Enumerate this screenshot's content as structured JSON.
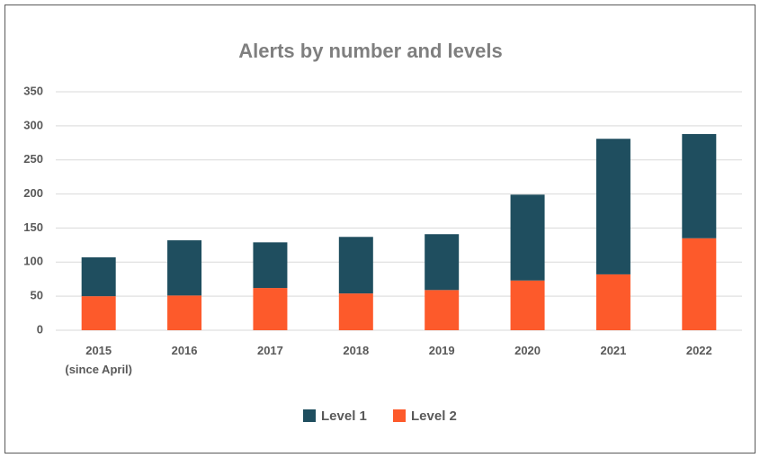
{
  "chart_data": {
    "type": "stacked_bar",
    "title": "Alerts by number and levels",
    "categories": [
      "2015\n(since April)",
      "2016",
      "2017",
      "2018",
      "2019",
      "2020",
      "2021",
      "2022"
    ],
    "series": [
      {
        "name": "Level 1",
        "color": "#1f4e5f",
        "values": [
          57,
          81,
          67,
          83,
          82,
          126,
          199,
          153
        ]
      },
      {
        "name": "Level 2",
        "color": "#fd5a2b",
        "values": [
          50,
          51,
          62,
          54,
          59,
          73,
          82,
          135
        ]
      }
    ],
    "stack_order": "last-at-bottom",
    "ylim": [
      0,
      350
    ],
    "yticks": [
      0,
      50,
      100,
      150,
      200,
      250,
      300,
      350
    ],
    "grid": true,
    "legend": "bottom"
  }
}
